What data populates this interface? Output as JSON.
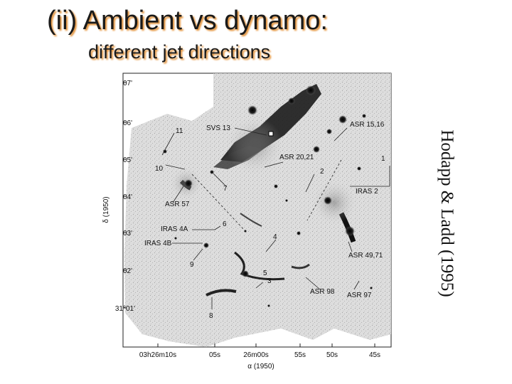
{
  "slide": {
    "title": "(ii) Ambient vs dynamo:",
    "subtitle": "different jet directions",
    "credit": "Hodapp & Ladd (1995)",
    "accent_color": "#e08a2c"
  },
  "figure": {
    "axis_y_label": "δ (1950)",
    "axis_x_label": "α (1950)",
    "y_ticks": [
      "07'",
      "06'",
      "05'",
      "04'",
      "03'",
      "02'",
      "31°01'"
    ],
    "x_ticks": [
      "03h26m10s",
      "05s",
      "26m00s",
      "55s",
      "50s",
      "45s"
    ],
    "annotations": [
      "SVS 13",
      "ASR 15,16",
      "11",
      "10",
      "ASR 20,21",
      "1",
      "2",
      "7",
      "IRAS 2",
      "ASR 57",
      "IRAS 4A",
      "6",
      "IRAS 4B",
      "4",
      "9",
      "ASR 49,71",
      "5",
      "3",
      "ASR 98",
      "ASR 97",
      "8"
    ]
  }
}
